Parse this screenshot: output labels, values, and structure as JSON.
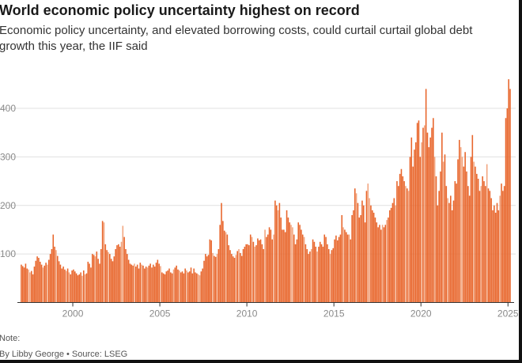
{
  "title": "World economic policy uncertainty highest on record",
  "subtitle": "Economic policy uncertainty, and elevated borrowing costs, could curtail curtail global debt growth this year, the IIF said",
  "note": "Note:",
  "credit": "By Libby George • Source: LSEG",
  "colors": {
    "bar": "#e8662c",
    "bar_light": "#f2a57f",
    "grid": "#e0e0e0",
    "axis": "#333333"
  },
  "chart_data": {
    "type": "bar",
    "title": "World economic policy uncertainty highest on record",
    "xlabel": "",
    "ylabel": "",
    "ylim": [
      0,
      460
    ],
    "yticks": [
      100,
      200,
      300,
      400
    ],
    "ytick_labels": [
      "100",
      "200",
      "300",
      "400"
    ],
    "xlim": [
      1997.0,
      2025.17
    ],
    "xticks": [
      2000,
      2005,
      2010,
      2015,
      2020,
      2025
    ],
    "xtick_labels": [
      "2000",
      "2005",
      "2010",
      "2015",
      "2020",
      "2025"
    ],
    "grid": true,
    "frequency": "monthly",
    "start": "1997-01",
    "series": [
      {
        "values": [
          78,
          75,
          72,
          80,
          70,
          68,
          62,
          65,
          58,
          74,
          86,
          95,
          92,
          84,
          78,
          72,
          76,
          82,
          78,
          88,
          100,
          110,
          140,
          115,
          108,
          96,
          85,
          78,
          70,
          74,
          68,
          65,
          70,
          62,
          58,
          66,
          68,
          64,
          60,
          56,
          58,
          62,
          55,
          66,
          58,
          60,
          84,
          80,
          72,
          100,
          98,
          95,
          105,
          90,
          80,
          110,
          168,
          165,
          120,
          108,
          104,
          100,
          90,
          85,
          95,
          110,
          118,
          120,
          115,
          125,
          158,
          135,
          110,
          100,
          88,
          80,
          78,
          76,
          80,
          74,
          78,
          70,
          82,
          78,
          76,
          70,
          74,
          72,
          76,
          80,
          72,
          78,
          74,
          82,
          88,
          80,
          75,
          62,
          60,
          58,
          64,
          66,
          70,
          62,
          60,
          68,
          72,
          76,
          68,
          66,
          62,
          64,
          60,
          70,
          66,
          62,
          64,
          72,
          60,
          70,
          62,
          60,
          58,
          56,
          64,
          70,
          86,
          100,
          95,
          98,
          130,
          128,
          102,
          96,
          94,
          100,
          110,
          160,
          205,
          168,
          148,
          145,
          140,
          118,
          108,
          100,
          95,
          92,
          98,
          106,
          110,
          102,
          96,
          110,
          115,
          120,
          120,
          118,
          140,
          135,
          125,
          115,
          118,
          132,
          128,
          130,
          120,
          110,
          150,
          135,
          140,
          155,
          150,
          130,
          140,
          210,
          200,
          190,
          205,
          175,
          150,
          150,
          145,
          190,
          175,
          165,
          160,
          155,
          140,
          120,
          130,
          165,
          160,
          150,
          140,
          135,
          120,
          110,
          100,
          105,
          110,
          130,
          125,
          115,
          105,
          115,
          125,
          120,
          115,
          140,
          135,
          120,
          110,
          100,
          108,
          112,
          130,
          138,
          128,
          135,
          140,
          180,
          155,
          150,
          145,
          140,
          140,
          130,
          180,
          190,
          235,
          225,
          205,
          175,
          180,
          210,
          200,
          165,
          230,
          245,
          215,
          200,
          190,
          185,
          175,
          165,
          155,
          160,
          150,
          160,
          155,
          160,
          170,
          175,
          190,
          195,
          205,
          215,
          200,
          250,
          240,
          265,
          275,
          260,
          250,
          240,
          235,
          230,
          300,
          340,
          280,
          315,
          330,
          370,
          375,
          300,
          330,
          360,
          365,
          440,
          350,
          320,
          340,
          360,
          380,
          300,
          260,
          200,
          230,
          270,
          350,
          290,
          305,
          240,
          215,
          205,
          220,
          190,
          210,
          250,
          245,
          295,
          335,
          320,
          300,
          280,
          310,
          270,
          240,
          220,
          300,
          345,
          290,
          280,
          265,
          255,
          230,
          240,
          260,
          250,
          240,
          285,
          235,
          230,
          215,
          190,
          200,
          185,
          205,
          190,
          220,
          245,
          230,
          240,
          380,
          400,
          460,
          440
        ]
      }
    ]
  }
}
